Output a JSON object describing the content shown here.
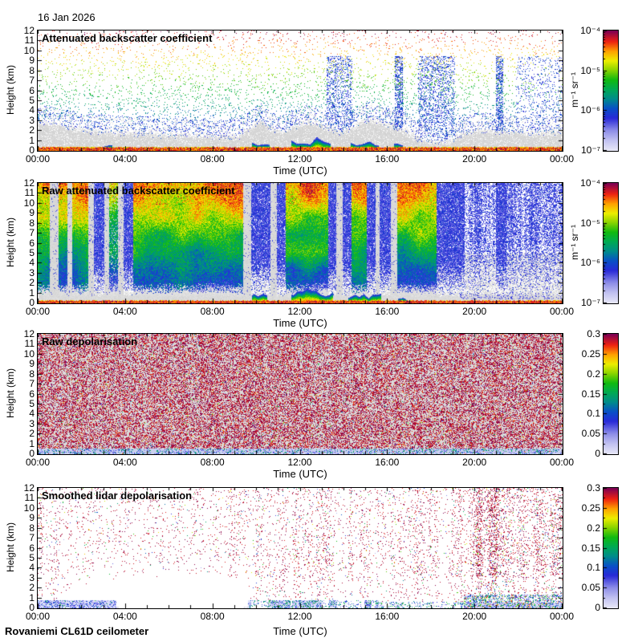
{
  "page": {
    "date_label": "16 Jan 2026",
    "footer": "Rovaniemi CL61D ceilometer",
    "background": "#ffffff",
    "text_color": "#000000"
  },
  "colormap": {
    "description": "jet-like colormap fading to pale lavender-white at the low end",
    "stops": [
      [
        0.0,
        "#e8e8f8"
      ],
      [
        0.08,
        "#c4c4f2"
      ],
      [
        0.17,
        "#8c8ce8"
      ],
      [
        0.27,
        "#2a2ad8"
      ],
      [
        0.35,
        "#0a50c8"
      ],
      [
        0.43,
        "#008c8c"
      ],
      [
        0.51,
        "#00aa55"
      ],
      [
        0.59,
        "#11bb11"
      ],
      [
        0.67,
        "#88d400"
      ],
      [
        0.75,
        "#eeee00"
      ],
      [
        0.83,
        "#ffa000"
      ],
      [
        0.91,
        "#ee2211"
      ],
      [
        1.0,
        "#7c0055"
      ]
    ],
    "nodata_gray": "#d6d6d6"
  },
  "chart_data": [
    {
      "type": "heatmap",
      "title": "Attenuated backscatter coefficient",
      "xlabel": "Time (UTC)",
      "ylabel": "Height (km)",
      "x_ticks": [
        "00:00",
        "04:00",
        "08:00",
        "12:00",
        "16:00",
        "20:00",
        "00:00"
      ],
      "x_minor_step_hours": 1,
      "xlim_hours": [
        0,
        24
      ],
      "y_ticks": [
        "0",
        "1",
        "2",
        "3",
        "4",
        "5",
        "6",
        "7",
        "8",
        "9",
        "10",
        "11",
        "12"
      ],
      "ylim_km": [
        0,
        12
      ],
      "colorbar": {
        "scale": "log",
        "ticks": [
          "10⁻⁴",
          "10⁻⁵",
          "10⁻⁶",
          "10⁻⁷"
        ],
        "unit": "m⁻¹ sr⁻¹",
        "range": [
          "1e-7",
          "1e-4"
        ]
      },
      "pattern": {
        "kind": "scatter-backscatter",
        "description": "sparse noise dots colored by apparent backscatter increasing with height (blue low, green/yellow mid, red/maroon top); pale-gray attenuated region near the surface with time-varying depth; strong red/orange surface return band with rainbow cloud bumps near 03, 10, 12-13, 15 UTC; dense blue columns near 13:30-14:30, 16:30, 17:30-19, 21 UTC",
        "gray_top_km": [
          2.8,
          2.6,
          2.4,
          2.2,
          2.0,
          1.9,
          1.8,
          1.7,
          1.7,
          1.6,
          1.6,
          1.5,
          1.5,
          1.5,
          1.4,
          1.4,
          1.4,
          1.3,
          1.3,
          2.2,
          2.9,
          2.0,
          1.8,
          2.4,
          2.8,
          2.6,
          2.2,
          1.8,
          2.0,
          2.9,
          3.1,
          2.6,
          2.3,
          1.9,
          1.2,
          0.9,
          0.8,
          0.9,
          1.6,
          1.9,
          2.0,
          1.9,
          1.8,
          1.8,
          1.7,
          1.7,
          1.8,
          1.9
        ],
        "blue_columns": [
          [
            13.2,
            14.4,
            0.3
          ],
          [
            16.35,
            16.7,
            0.5
          ],
          [
            17.4,
            19.1,
            0.28
          ],
          [
            20.95,
            21.3,
            0.5
          ],
          [
            21.9,
            24,
            0.12
          ]
        ],
        "cloud_bumps": [
          [
            2.8,
            3.4,
            0.6
          ],
          [
            9.8,
            10.6,
            1.1
          ],
          [
            11.6,
            13.4,
            1.3
          ],
          [
            14.3,
            15.6,
            0.9
          ],
          [
            16.3,
            16.7,
            0.7
          ]
        ],
        "dot_density": [
          0.035,
          0.09
        ]
      }
    },
    {
      "type": "heatmap",
      "title": "Raw attenuated backscatter coefficient",
      "xlabel": "Time (UTC)",
      "ylabel": "Height (km)",
      "x_ticks": [
        "00:00",
        "04:00",
        "08:00",
        "12:00",
        "16:00",
        "20:00",
        "00:00"
      ],
      "x_minor_step_hours": 1,
      "xlim_hours": [
        0,
        24
      ],
      "y_ticks": [
        "0",
        "1",
        "2",
        "3",
        "4",
        "5",
        "6",
        "7",
        "8",
        "9",
        "10",
        "11",
        "12"
      ],
      "ylim_km": [
        0,
        12
      ],
      "colorbar": {
        "scale": "log",
        "ticks": [
          "10⁻⁴",
          "10⁻⁵",
          "10⁻⁶",
          "10⁻⁷"
        ],
        "unit": "m⁻¹ sr⁻¹",
        "range": [
          "1e-7",
          "1e-4"
        ]
      },
      "pattern": {
        "kind": "raw-noise",
        "description": "dense speckle noise, orange/red aloft grading through green to blue near the surface during daytime segments; night/evening segments mostly blue; pale-gray vertical data-gap stripes; pale-gray lowest ~1 km with a thin red surface-return line and rainbow cloud bumps 12-13 and 14:30-15:30 UTC",
        "segments": [
          [
            0,
            0.55,
            "strong"
          ],
          [
            0.55,
            0.95,
            "gray"
          ],
          [
            0.95,
            1.35,
            "strong"
          ],
          [
            1.35,
            1.55,
            "gray"
          ],
          [
            1.55,
            2.3,
            "strong"
          ],
          [
            2.3,
            2.55,
            "gray"
          ],
          [
            2.55,
            3.05,
            "blue"
          ],
          [
            3.05,
            3.25,
            "gray"
          ],
          [
            3.25,
            3.65,
            "strongweak"
          ],
          [
            3.65,
            3.9,
            "gray"
          ],
          [
            3.9,
            4.35,
            "blue"
          ],
          [
            4.35,
            9.4,
            "strong"
          ],
          [
            9.4,
            9.75,
            "gray"
          ],
          [
            9.75,
            10.65,
            "blue"
          ],
          [
            10.65,
            10.95,
            "gray"
          ],
          [
            10.95,
            11.35,
            "blue"
          ],
          [
            11.35,
            13.3,
            "strong"
          ],
          [
            13.3,
            13.65,
            "blue"
          ],
          [
            13.65,
            13.95,
            "gray"
          ],
          [
            13.95,
            14.35,
            "blue"
          ],
          [
            14.35,
            15.05,
            "strong"
          ],
          [
            15.05,
            15.45,
            "blue"
          ],
          [
            15.45,
            15.65,
            "gray"
          ],
          [
            15.65,
            16.15,
            "blue"
          ],
          [
            16.15,
            16.45,
            "gray"
          ],
          [
            16.45,
            18.25,
            "strong"
          ],
          [
            18.25,
            19.55,
            "blue"
          ],
          [
            19.55,
            20.95,
            "bluesparse"
          ],
          [
            20.95,
            21.45,
            "blue"
          ],
          [
            21.45,
            24.01,
            "bluesparse"
          ]
        ],
        "cloud_bumps": [
          [
            9.8,
            10.5,
            0.9
          ],
          [
            11.6,
            13.5,
            1.5
          ],
          [
            14.2,
            15.7,
            0.9
          ],
          [
            16.5,
            17.1,
            0.5
          ]
        ]
      }
    },
    {
      "type": "heatmap",
      "title": "Raw depolarisation",
      "xlabel": "Time (UTC)",
      "ylabel": "Height (km)",
      "x_ticks": [
        "00:00",
        "04:00",
        "08:00",
        "12:00",
        "16:00",
        "20:00",
        "00:00"
      ],
      "x_minor_step_hours": 1,
      "xlim_hours": [
        0,
        24
      ],
      "y_ticks": [
        "0",
        "1",
        "2",
        "3",
        "4",
        "5",
        "6",
        "7",
        "8",
        "9",
        "10",
        "11",
        "12"
      ],
      "ylim_km": [
        0,
        12
      ],
      "colorbar": {
        "scale": "linear",
        "ticks": [
          "0.3",
          "0.25",
          "0.2",
          "0.15",
          "0.1",
          "0.05",
          "0"
        ],
        "unit": "",
        "range": [
          "0",
          "0.3"
        ]
      },
      "pattern": {
        "kind": "depol-noise",
        "description": "uniform dense maroon/purple speckle noise over pale-gray background across the whole day, with occasional random bright specks; lowest ~0.5 km is a pale lavender band with blue/green/cyan speckles",
        "purple_density": 0.42,
        "bright_density": 0.025,
        "bottom_band_km": 0.5
      }
    },
    {
      "type": "heatmap",
      "title": "Smoothed lidar depolarisation",
      "xlabel": "Time (UTC)",
      "ylabel": "Height (km)",
      "x_ticks": [
        "00:00",
        "04:00",
        "08:00",
        "12:00",
        "16:00",
        "20:00",
        "00:00"
      ],
      "x_minor_step_hours": 1,
      "xlim_hours": [
        0,
        24
      ],
      "y_ticks": [
        "0",
        "1",
        "2",
        "3",
        "4",
        "5",
        "6",
        "7",
        "8",
        "9",
        "10",
        "11",
        "12"
      ],
      "ylim_km": [
        0,
        12
      ],
      "colorbar": {
        "scale": "linear",
        "ticks": [
          "0.3",
          "0.25",
          "0.2",
          "0.15",
          "0.1",
          "0.05",
          "0"
        ],
        "unit": "",
        "range": [
          "0",
          "0.3"
        ]
      },
      "pattern": {
        "kind": "smoothed-depol",
        "description": "sparse purple speckles on white in vertical streaks, densest 19:30-24:00 with a strong column near 20:30; clear white hole below ~3 km from 01:00-09:30; low-level band of blue/green speckles 00:00-03:30, patchy lavender/blue blobs 09:30-15:30, dense colorful speckles after 19:30",
        "hourly_density": [
          0.055,
          0.038,
          0.032,
          0.03,
          0.028,
          0.026,
          0.026,
          0.028,
          0.03,
          0.042,
          0.06,
          0.062,
          0.06,
          0.058,
          0.06,
          0.055,
          0.05,
          0.042,
          0.05,
          0.075,
          0.105,
          0.085,
          0.08,
          0.09
        ],
        "white_hole_hours": [
          0.9,
          9.6
        ],
        "dense_column_hours": [
          20.05,
          21.15
        ],
        "bottom_segments": [
          [
            0,
            3.6,
            0.75,
            "blue"
          ],
          [
            9.6,
            15.6,
            0.8,
            "patchy"
          ],
          [
            15.6,
            19.5,
            0.6,
            "sparse"
          ],
          [
            19.5,
            24,
            1.3,
            "dense"
          ]
        ]
      }
    }
  ]
}
